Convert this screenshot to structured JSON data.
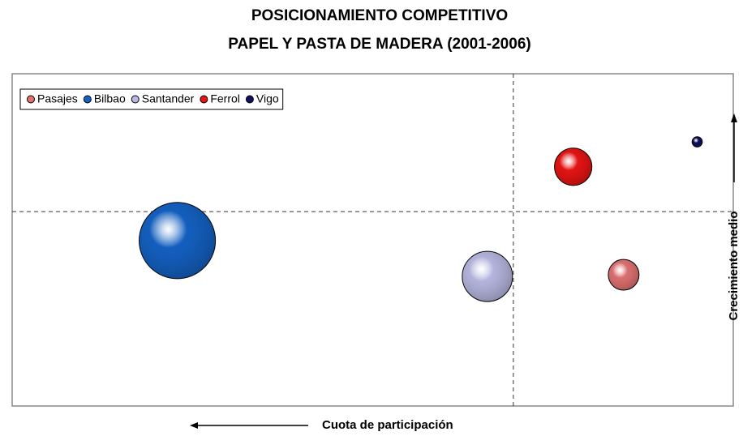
{
  "chart_data": {
    "type": "bubble",
    "title": "POSICIONAMIENTO COMPETITIVO",
    "subtitle": "PAPEL Y PASTA DE MADERA (2001-2006)",
    "x_label": "Cuota de participación",
    "y_label": "Crecimiento medio",
    "xlim": [
      100,
      0
    ],
    "ylim": [
      0,
      100
    ],
    "reference_x": 30.5,
    "reference_y": 58.5,
    "legend": "upper left",
    "series": [
      {
        "name": "Pasajes",
        "color": "#e07272",
        "x": [
          15.2
        ],
        "values": [
          39.5
        ],
        "sizes": [
          3.6
        ]
      },
      {
        "name": "Bilbao",
        "color": "#1462c4",
        "x": [
          77.1
        ],
        "values": [
          49.8
        ],
        "sizes": [
          22.1
        ]
      },
      {
        "name": "Santander",
        "color": "#b8b8e2",
        "x": [
          34.1
        ],
        "values": [
          39.0
        ],
        "sizes": [
          9.6
        ]
      },
      {
        "name": "Ferrol",
        "color": "#e81414",
        "x": [
          22.2
        ],
        "values": [
          72.0
        ],
        "sizes": [
          5.3
        ]
      },
      {
        "name": "Vigo",
        "color": "#10105e",
        "x": [
          5.0
        ],
        "values": [
          79.5
        ],
        "sizes": [
          0.4
        ]
      }
    ]
  }
}
